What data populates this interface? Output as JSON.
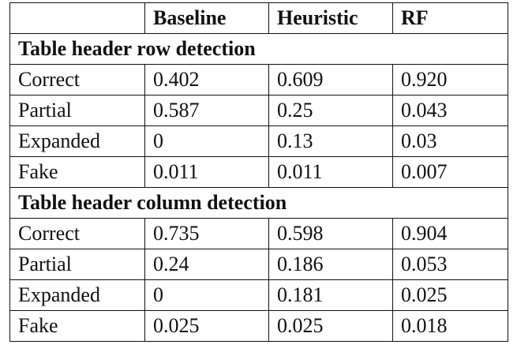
{
  "table": {
    "header": [
      "Baseline",
      "Heuristic",
      "RF"
    ],
    "sections": [
      {
        "title": "Table header row detection",
        "rows": [
          [
            "Correct",
            "0.402",
            "0.609",
            "0.920"
          ],
          [
            "Partial",
            "0.587",
            "0.25",
            "0.043"
          ],
          [
            "Expanded",
            "0",
            "0.13",
            "0.03"
          ],
          [
            "Fake",
            "0.011",
            "0.011",
            "0.007"
          ]
        ]
      },
      {
        "title": "Table header column detection",
        "rows": [
          [
            "Correct",
            "0.735",
            "0.598",
            "0.904"
          ],
          [
            "Partial",
            "0.24",
            "0.186",
            "0.053"
          ],
          [
            "Expanded",
            "0",
            "0.181",
            "0.025"
          ],
          [
            "Fake",
            "0.025",
            "0.025",
            "0.018"
          ]
        ]
      }
    ]
  }
}
